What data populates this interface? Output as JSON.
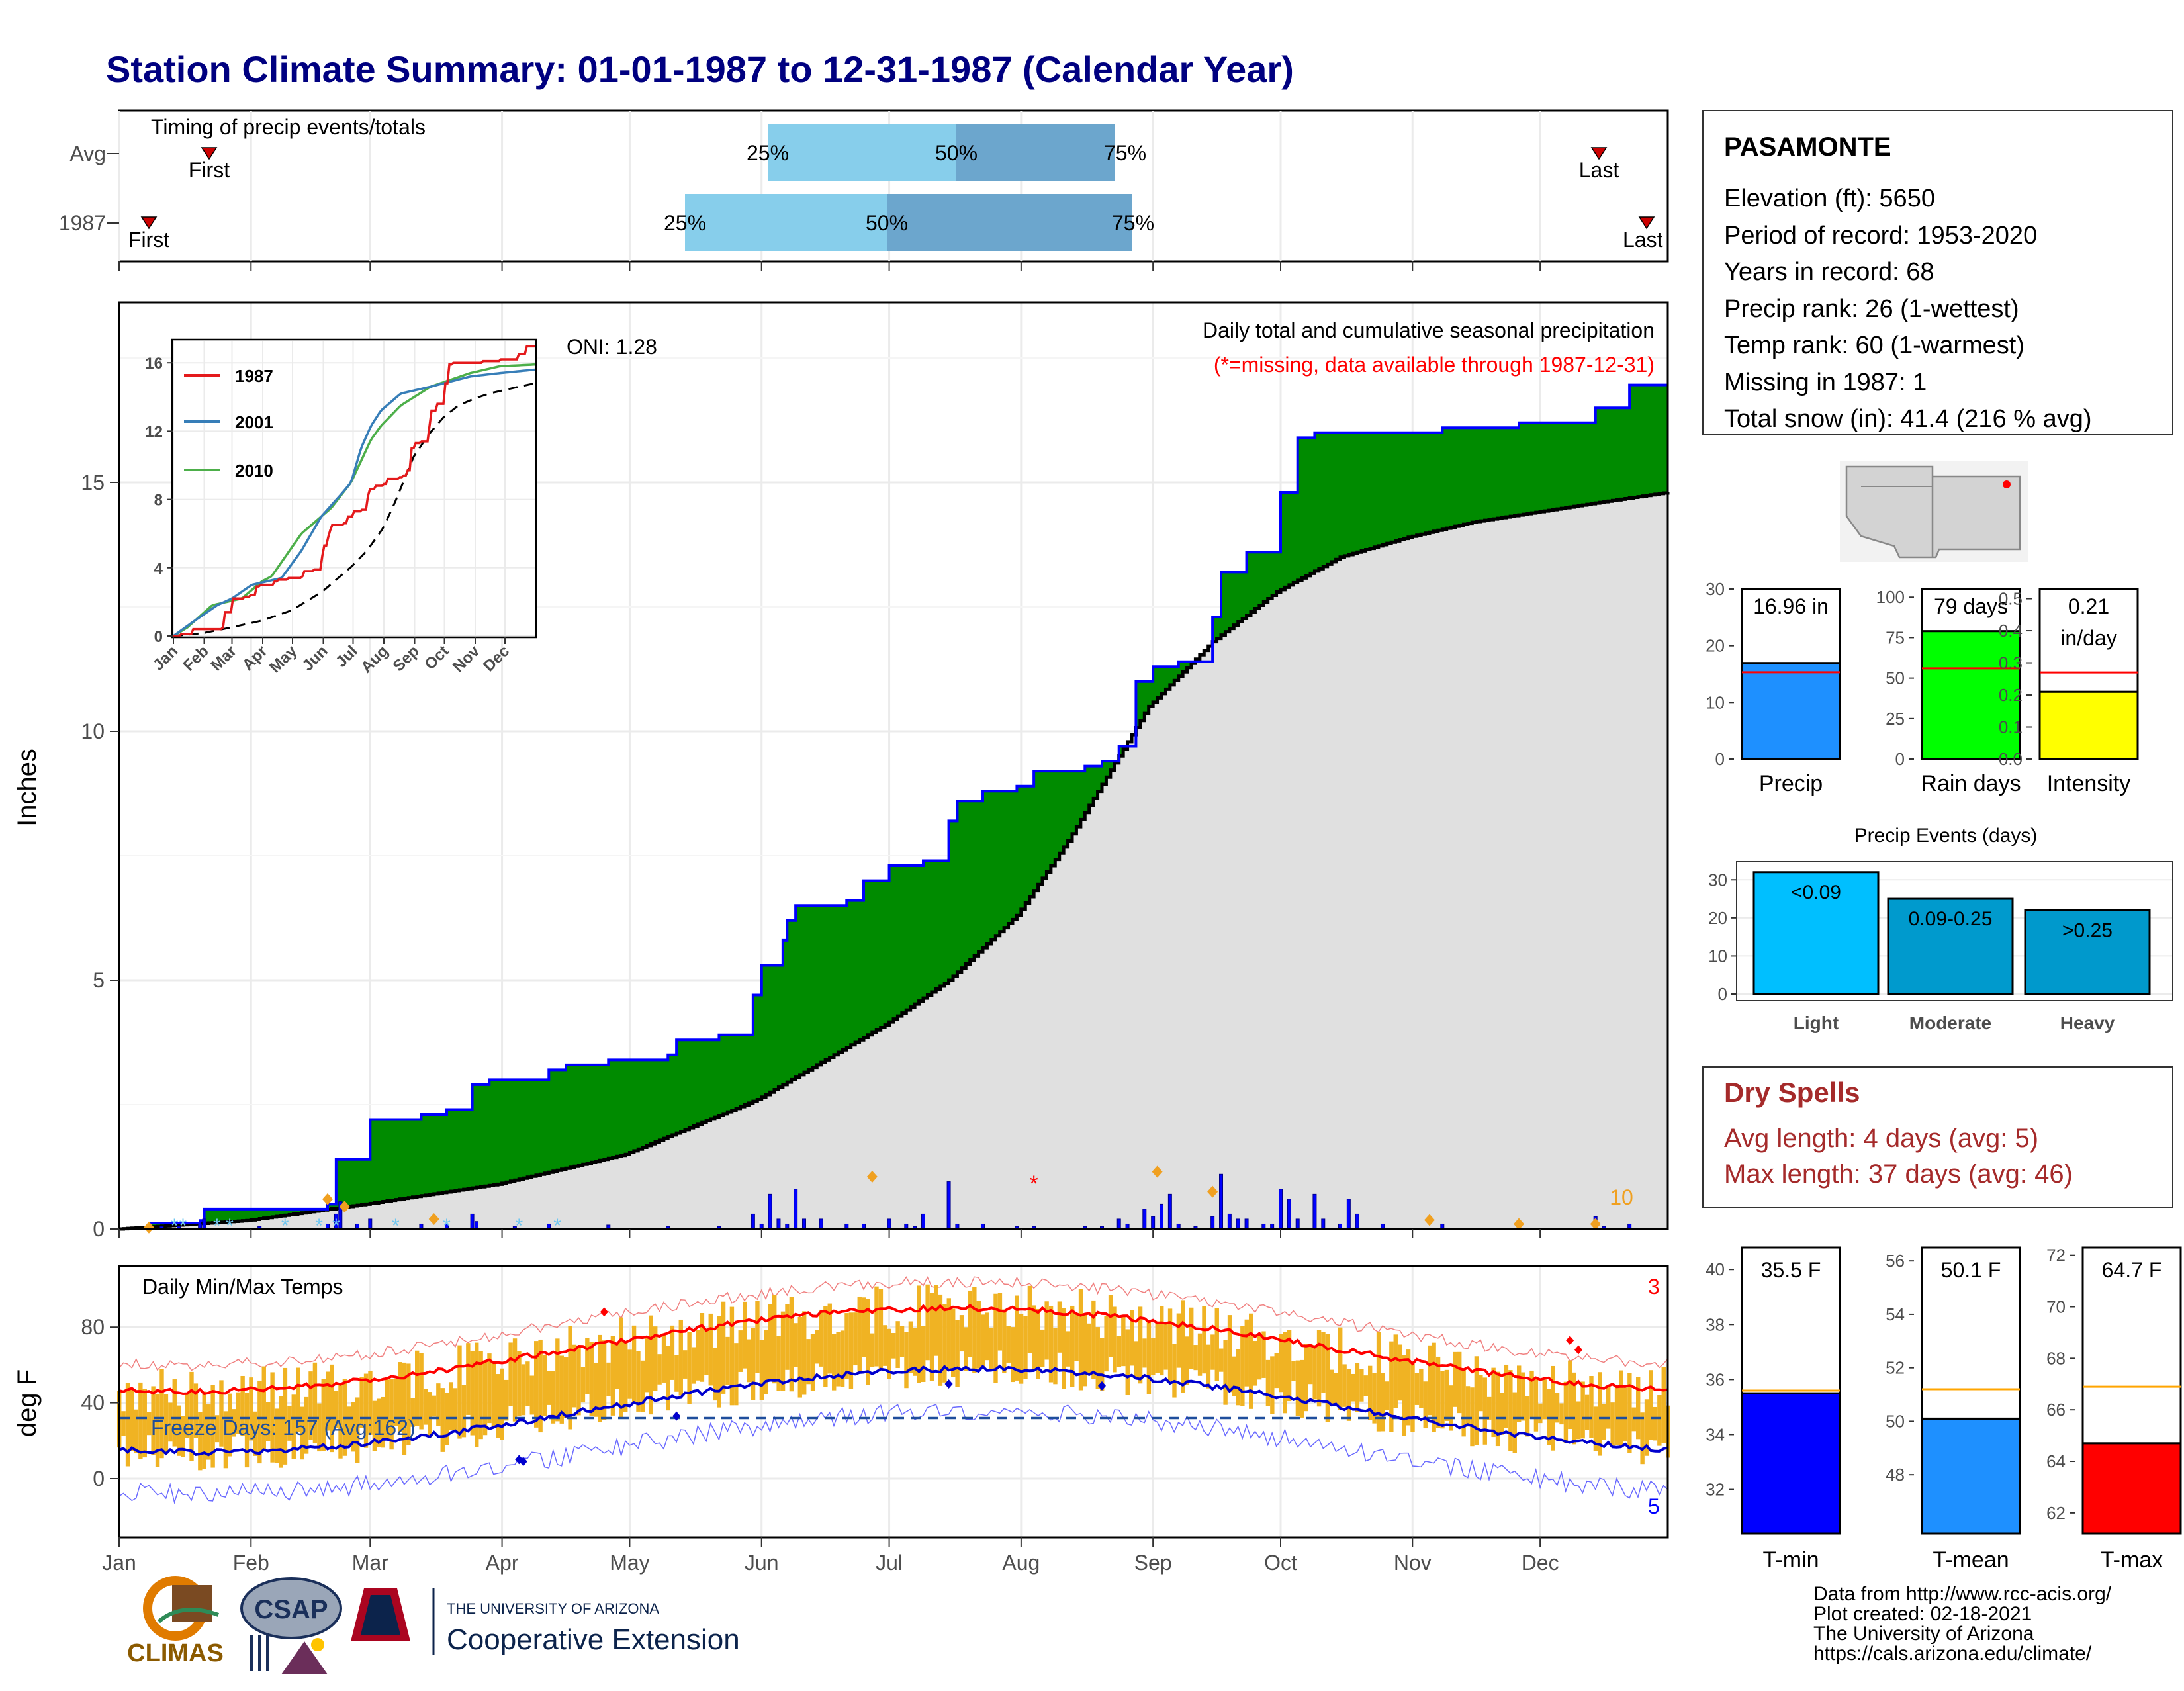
{
  "title": "Station Climate Summary: 01-01-1987 to 12-31-1987 (Calendar Year)",
  "colors": {
    "title": "#000080",
    "green": "#008B00",
    "blue": "#0000FF",
    "grey_area": "#E0E0E0",
    "light_blue": "#87CEEB",
    "mid_blue": "#6CA6CD",
    "orange": "#F0B323",
    "red": "#FF0000",
    "dark_red": "#A52A2A"
  },
  "timing": {
    "label": "Timing of precip events/totals",
    "rows": [
      "Avg",
      "1987"
    ],
    "first_label": "First",
    "last_label": "Last",
    "pct_labels": [
      "25%",
      "50%",
      "75%"
    ],
    "avg": {
      "first": "Jan 22",
      "p25": "May 25",
      "p50": "Jul 9",
      "p75": "Aug 23",
      "last": "Dec 10"
    },
    "y1987": {
      "first": "Jan 8",
      "p25": "May 5",
      "p50": "Jun 22",
      "p75": "Aug 31",
      "last": "Dec 30"
    }
  },
  "precip": {
    "ylabel": "Inches",
    "yticks": [
      "0",
      "5",
      "10",
      "15"
    ],
    "title": "Daily total and cumulative seasonal precipitation",
    "missing_note": "(*=missing, data available through 1987-12-31)",
    "oni": "ONI: 1.28",
    "corner_count": "10",
    "cumulative_1987": [
      [
        1,
        0.0
      ],
      [
        8,
        0.12
      ],
      [
        20,
        0.17
      ],
      [
        21,
        0.4
      ],
      [
        50,
        0.5
      ],
      [
        52,
        1.4
      ],
      [
        60,
        2.2
      ],
      [
        70,
        2.2
      ],
      [
        72,
        2.3
      ],
      [
        78,
        2.4
      ],
      [
        84,
        2.9
      ],
      [
        88,
        3.0
      ],
      [
        100,
        3.0
      ],
      [
        102,
        3.2
      ],
      [
        106,
        3.3
      ],
      [
        116,
        3.4
      ],
      [
        130,
        3.5
      ],
      [
        132,
        3.8
      ],
      [
        142,
        3.9
      ],
      [
        150,
        4.7
      ],
      [
        152,
        5.3
      ],
      [
        157,
        5.8
      ],
      [
        158,
        6.2
      ],
      [
        160,
        6.5
      ],
      [
        172,
        6.6
      ],
      [
        176,
        7.0
      ],
      [
        182,
        7.3
      ],
      [
        190,
        7.4
      ],
      [
        196,
        8.2
      ],
      [
        198,
        8.6
      ],
      [
        204,
        8.8
      ],
      [
        212,
        8.9
      ],
      [
        216,
        9.2
      ],
      [
        228,
        9.3
      ],
      [
        232,
        9.4
      ],
      [
        236,
        9.7
      ],
      [
        240,
        11.0
      ],
      [
        244,
        11.3
      ],
      [
        250,
        11.4
      ],
      [
        258,
        12.3
      ],
      [
        260,
        13.2
      ],
      [
        266,
        13.6
      ],
      [
        274,
        14.8
      ],
      [
        278,
        15.9
      ],
      [
        282,
        16.0
      ],
      [
        295,
        16.0
      ],
      [
        312,
        16.1
      ],
      [
        330,
        16.2
      ],
      [
        348,
        16.5
      ],
      [
        356,
        16.96
      ],
      [
        365,
        16.96
      ]
    ],
    "avg_cumulative": [
      [
        1,
        0.0
      ],
      [
        31,
        0.17
      ],
      [
        59,
        0.5
      ],
      [
        90,
        0.9
      ],
      [
        120,
        1.5
      ],
      [
        151,
        2.6
      ],
      [
        181,
        4.1
      ],
      [
        196,
        5.0
      ],
      [
        212,
        6.3
      ],
      [
        224,
        7.8
      ],
      [
        243,
        10.5
      ],
      [
        258,
        11.8
      ],
      [
        273,
        12.8
      ],
      [
        288,
        13.5
      ],
      [
        304,
        13.9
      ],
      [
        319,
        14.2
      ],
      [
        334,
        14.4
      ],
      [
        349,
        14.6
      ],
      [
        365,
        14.8
      ]
    ],
    "daily_bars": [
      [
        8,
        0.1
      ],
      [
        11,
        0.05
      ],
      [
        15,
        0.05
      ],
      [
        20,
        0.1
      ],
      [
        21,
        0.2
      ],
      [
        34,
        0.05
      ],
      [
        50,
        0.1
      ],
      [
        52,
        0.3
      ],
      [
        53,
        0.55
      ],
      [
        57,
        0.1
      ],
      [
        60,
        0.2
      ],
      [
        72,
        0.1
      ],
      [
        78,
        0.1
      ],
      [
        84,
        0.3
      ],
      [
        85,
        0.15
      ],
      [
        94,
        0.05
      ],
      [
        102,
        0.1
      ],
      [
        116,
        0.08
      ],
      [
        130,
        0.05
      ],
      [
        142,
        0.05
      ],
      [
        150,
        0.3
      ],
      [
        152,
        0.1
      ],
      [
        154,
        0.7
      ],
      [
        156,
        0.2
      ],
      [
        158,
        0.1
      ],
      [
        160,
        0.8
      ],
      [
        162,
        0.2
      ],
      [
        166,
        0.2
      ],
      [
        172,
        0.1
      ],
      [
        176,
        0.1
      ],
      [
        182,
        0.2
      ],
      [
        186,
        0.1
      ],
      [
        188,
        0.05
      ],
      [
        190,
        0.3
      ],
      [
        196,
        0.95
      ],
      [
        198,
        0.1
      ],
      [
        204,
        0.1
      ],
      [
        212,
        0.05
      ],
      [
        216,
        0.05
      ],
      [
        228,
        0.05
      ],
      [
        232,
        0.05
      ],
      [
        236,
        0.2
      ],
      [
        238,
        0.1
      ],
      [
        242,
        0.4
      ],
      [
        244,
        0.25
      ],
      [
        246,
        0.5
      ],
      [
        248,
        0.7
      ],
      [
        250,
        0.1
      ],
      [
        254,
        0.05
      ],
      [
        258,
        0.25
      ],
      [
        260,
        1.1
      ],
      [
        262,
        0.3
      ],
      [
        264,
        0.2
      ],
      [
        266,
        0.2
      ],
      [
        270,
        0.1
      ],
      [
        272,
        0.1
      ],
      [
        274,
        0.8
      ],
      [
        276,
        0.6
      ],
      [
        278,
        0.2
      ],
      [
        282,
        0.7
      ],
      [
        284,
        0.2
      ],
      [
        288,
        0.1
      ],
      [
        290,
        0.6
      ],
      [
        292,
        0.3
      ],
      [
        298,
        0.1
      ],
      [
        312,
        0.1
      ],
      [
        348,
        0.25
      ],
      [
        350,
        0.05
      ],
      [
        356,
        0.1
      ]
    ],
    "snow_days": [
      14,
      16,
      24,
      27,
      40,
      48,
      52,
      66,
      78,
      95,
      104
    ],
    "orange_days": [
      [
        8,
        0.03
      ],
      [
        50,
        0.6
      ],
      [
        54,
        0.45
      ],
      [
        75,
        0.2
      ],
      [
        178,
        1.05
      ],
      [
        245,
        1.15
      ],
      [
        258,
        0.75
      ],
      [
        309,
        0.18
      ],
      [
        330,
        0.1
      ],
      [
        348,
        0.1
      ]
    ],
    "missing_day": 216
  },
  "inset": {
    "years": [
      "1987",
      "2001",
      "2010"
    ],
    "year_colors": [
      "#E41A1C",
      "#377EB8",
      "#4DAF4A"
    ],
    "yticks": [
      "0",
      "4",
      "8",
      "12",
      "16"
    ],
    "months": [
      "Jan",
      "Feb",
      "Mar",
      "Apr",
      "May",
      "Jun",
      "Jul",
      "Aug",
      "Sep",
      "Oct",
      "Nov",
      "Dec"
    ],
    "series_2001": [
      [
        1,
        0
      ],
      [
        20,
        0.8
      ],
      [
        45,
        1.8
      ],
      [
        60,
        2.2
      ],
      [
        80,
        3.0
      ],
      [
        110,
        3.4
      ],
      [
        130,
        5.0
      ],
      [
        150,
        7.0
      ],
      [
        170,
        8.3
      ],
      [
        180,
        9.0
      ],
      [
        190,
        11.0
      ],
      [
        200,
        12.3
      ],
      [
        210,
        13.2
      ],
      [
        230,
        14.2
      ],
      [
        260,
        14.6
      ],
      [
        300,
        15.2
      ],
      [
        330,
        15.4
      ],
      [
        365,
        15.6
      ]
    ],
    "series_2010": [
      [
        1,
        0
      ],
      [
        15,
        0.5
      ],
      [
        40,
        1.8
      ],
      [
        70,
        2.2
      ],
      [
        90,
        3.2
      ],
      [
        100,
        3.5
      ],
      [
        130,
        6.0
      ],
      [
        160,
        7.5
      ],
      [
        180,
        9.0
      ],
      [
        200,
        11.5
      ],
      [
        210,
        12.3
      ],
      [
        230,
        13.5
      ],
      [
        260,
        14.6
      ],
      [
        300,
        15.4
      ],
      [
        330,
        15.8
      ],
      [
        365,
        15.9
      ]
    ]
  },
  "station": {
    "name": "PASAMONTE",
    "lines": [
      "Elevation (ft): 5650",
      "Period of record: 1953-2020",
      "Years in record: 68",
      "Precip rank: 26 (1-wettest)",
      "Temp rank: 60 (1-warmest)",
      "Missing in 1987: 1",
      "Total snow (in): 41.4 (216 % avg)"
    ]
  },
  "mini_bars": [
    {
      "name": "precip",
      "value": 16.96,
      "label": "16.96 in",
      "avg": 15.3,
      "ymax": 30,
      "yticks": [
        "0",
        "10",
        "20",
        "30"
      ],
      "color": "#1E90FF",
      "xlabel": "Precip"
    },
    {
      "name": "rain-days",
      "value": 79,
      "label": "79 days",
      "avg": 56,
      "ymax": 105,
      "yticks": [
        "0",
        "25",
        "50",
        "75",
        "100"
      ],
      "color": "#00FF00",
      "xlabel": "Rain days"
    },
    {
      "name": "intensity",
      "value": 0.21,
      "label": "0.21\nin/day",
      "avg": 0.27,
      "ymax": 0.53,
      "yticks": [
        "0.0",
        "0.1",
        "0.2",
        "0.3",
        "0.4",
        "0.5"
      ],
      "color": "#FFFF00",
      "xlabel": "Intensity"
    }
  ],
  "events": {
    "title": "Precip Events (days)",
    "categories": [
      "Light",
      "Moderate",
      "Heavy"
    ],
    "labels": [
      "<0.09",
      "0.09-0.25",
      ">0.25"
    ],
    "values": [
      32,
      25,
      22
    ],
    "yticks": [
      "0",
      "10",
      "20",
      "30"
    ],
    "colors": [
      "#00BFFF",
      "#009ACD",
      "#0099CC"
    ]
  },
  "dry": {
    "title": "Dry Spells",
    "avg": "Avg length: 4 days (avg: 5)",
    "max": "Max length: 37 days (avg: 46)"
  },
  "temps": {
    "ylabel": "deg F",
    "title": "Daily Min/Max Temps",
    "yticks": [
      "0",
      "40",
      "80"
    ],
    "freeze": "Freeze Days: 157 (Avg:162)",
    "record_high_count": "3",
    "record_low_count": "5",
    "months": [
      "Jan",
      "Feb",
      "Mar",
      "Apr",
      "May",
      "Jun",
      "Jul",
      "Aug",
      "Sep",
      "Oct",
      "Nov",
      "Dec"
    ]
  },
  "temp_bars": [
    {
      "name": "tmin",
      "value": 35.5,
      "label": "35.5 F",
      "avg": 35.6,
      "ymin": 30.4,
      "ymax": 40.8,
      "yticks": [
        "32",
        "34",
        "36",
        "38",
        "40"
      ],
      "yvals": [
        32,
        34,
        36,
        38,
        40
      ],
      "color": "#0000FF",
      "xlabel": "T-min"
    },
    {
      "name": "tmean",
      "value": 50.1,
      "label": "50.1 F",
      "avg": 51.2,
      "ymin": 45.8,
      "ymax": 56.5,
      "yticks": [
        "48",
        "50",
        "52",
        "54",
        "56"
      ],
      "yvals": [
        48,
        50,
        52,
        54,
        56
      ],
      "color": "#1E90FF",
      "xlabel": "T-mean"
    },
    {
      "name": "tmax",
      "value": 64.7,
      "label": "64.7 F",
      "avg": 66.9,
      "ymin": 61.2,
      "ymax": 72.3,
      "yticks": [
        "62",
        "64",
        "66",
        "68",
        "70",
        "72"
      ],
      "yvals": [
        62,
        64,
        66,
        68,
        70,
        72
      ],
      "color": "#FF0000",
      "xlabel": "T-max"
    }
  ],
  "footer": {
    "credits": [
      "Data from http://www.rcc-acis.org/",
      "Plot created: 02-18-2021",
      "The University of Arizona",
      "https://cals.arizona.edu/climate/"
    ],
    "climas": "CLIMAS",
    "csap": "CSAP",
    "ua_top": "THE UNIVERSITY OF ARIZONA",
    "ua_bottom": "Cooperative Extension"
  }
}
